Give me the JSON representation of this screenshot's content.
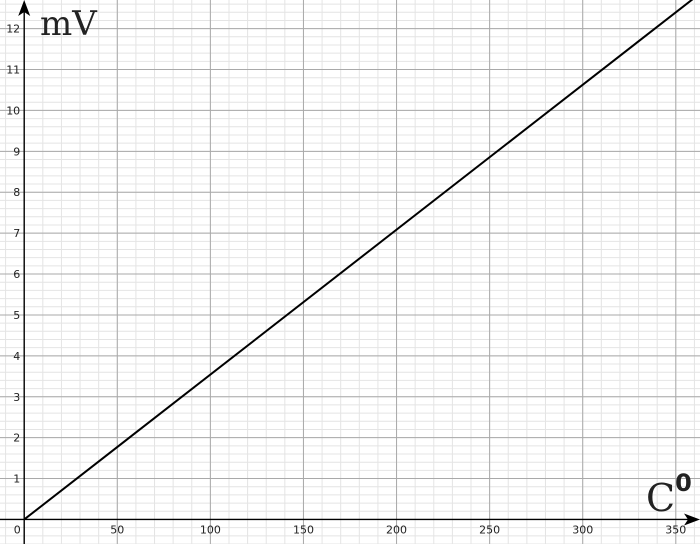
{
  "chart_data": {
    "type": "line",
    "title": "",
    "xlabel": "C",
    "xlabel_superscript": "0",
    "ylabel": "mV",
    "xlim": [
      -13,
      363
    ],
    "ylim": [
      -0.6,
      12.7
    ],
    "x_ticks": [
      0,
      50,
      100,
      150,
      200,
      250,
      300,
      350
    ],
    "y_ticks": [
      1,
      2,
      3,
      4,
      5,
      6,
      7,
      8,
      9,
      10,
      11,
      12
    ],
    "x_tick_labels": [
      "0",
      "50",
      "100",
      "150",
      "200",
      "250",
      "300",
      "350"
    ],
    "y_tick_labels": [
      "1",
      "2",
      "3",
      "4",
      "5",
      "6",
      "7",
      "8",
      "9",
      "10",
      "11",
      "12"
    ],
    "grid": true,
    "minor_grid": true,
    "legend": "none",
    "series": [
      {
        "x": [
          0,
          365
        ],
        "y": [
          0,
          12.93
        ],
        "color": "#000000"
      }
    ],
    "colors": {
      "major_grid": "#a9a9a9",
      "minor_grid": "#e4e4e4",
      "axis": "#000000"
    }
  }
}
